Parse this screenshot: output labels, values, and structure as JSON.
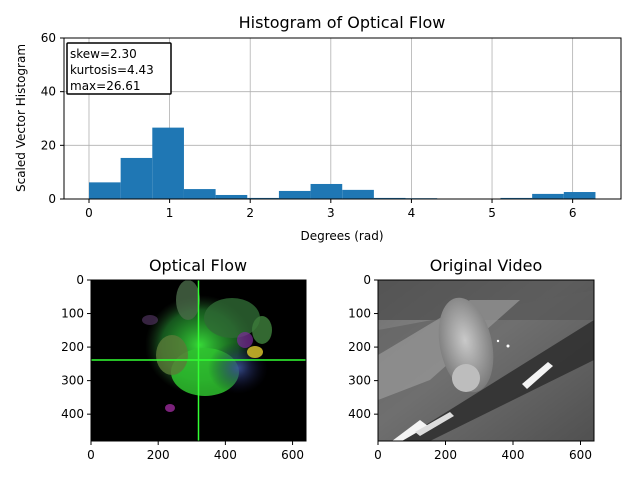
{
  "chart_data": [
    {
      "type": "bar",
      "title": "Histogram of Optical Flow",
      "xlabel": "Degrees (rad)",
      "ylabel": "Scaled Vector Histogram",
      "xlim": [
        -0.31,
        6.6
      ],
      "ylim": [
        0,
        60
      ],
      "xticks": [
        0,
        1,
        2,
        3,
        4,
        5,
        6
      ],
      "yticks": [
        0,
        20,
        40,
        60
      ],
      "grid": true,
      "bin_width": 0.3927,
      "bin_starts": [
        0,
        0.3927,
        0.7854,
        1.1781,
        1.5708,
        1.9635,
        2.3562,
        2.7489,
        3.1416,
        3.5343,
        3.927,
        4.3197,
        4.7124,
        5.1051,
        5.4978,
        5.8905
      ],
      "values": [
        6.2,
        15.3,
        26.6,
        3.7,
        1.5,
        0.4,
        3.0,
        5.6,
        3.4,
        0.4,
        0.3,
        0.1,
        0.1,
        0.4,
        1.9,
        2.6
      ],
      "bar_color": "#1f77b4",
      "annotation": [
        "skew=2.30",
        "kurtosis=4.43",
        "max=26.61"
      ]
    },
    {
      "type": "image",
      "title": "Optical Flow",
      "xlim": [
        0,
        640
      ],
      "ylim": [
        480,
        0
      ],
      "xticks": [
        0,
        200,
        400,
        600
      ],
      "yticks": [
        0,
        100,
        200,
        300,
        400
      ],
      "crosshair": [
        320,
        240
      ],
      "crosshair_color": "#33ff33"
    },
    {
      "type": "image",
      "title": "Original Video",
      "xlim": [
        0,
        640
      ],
      "ylim": [
        480,
        0
      ],
      "xticks": [
        0,
        200,
        400,
        600
      ],
      "yticks": [
        0,
        100,
        200,
        300,
        400
      ]
    }
  ]
}
